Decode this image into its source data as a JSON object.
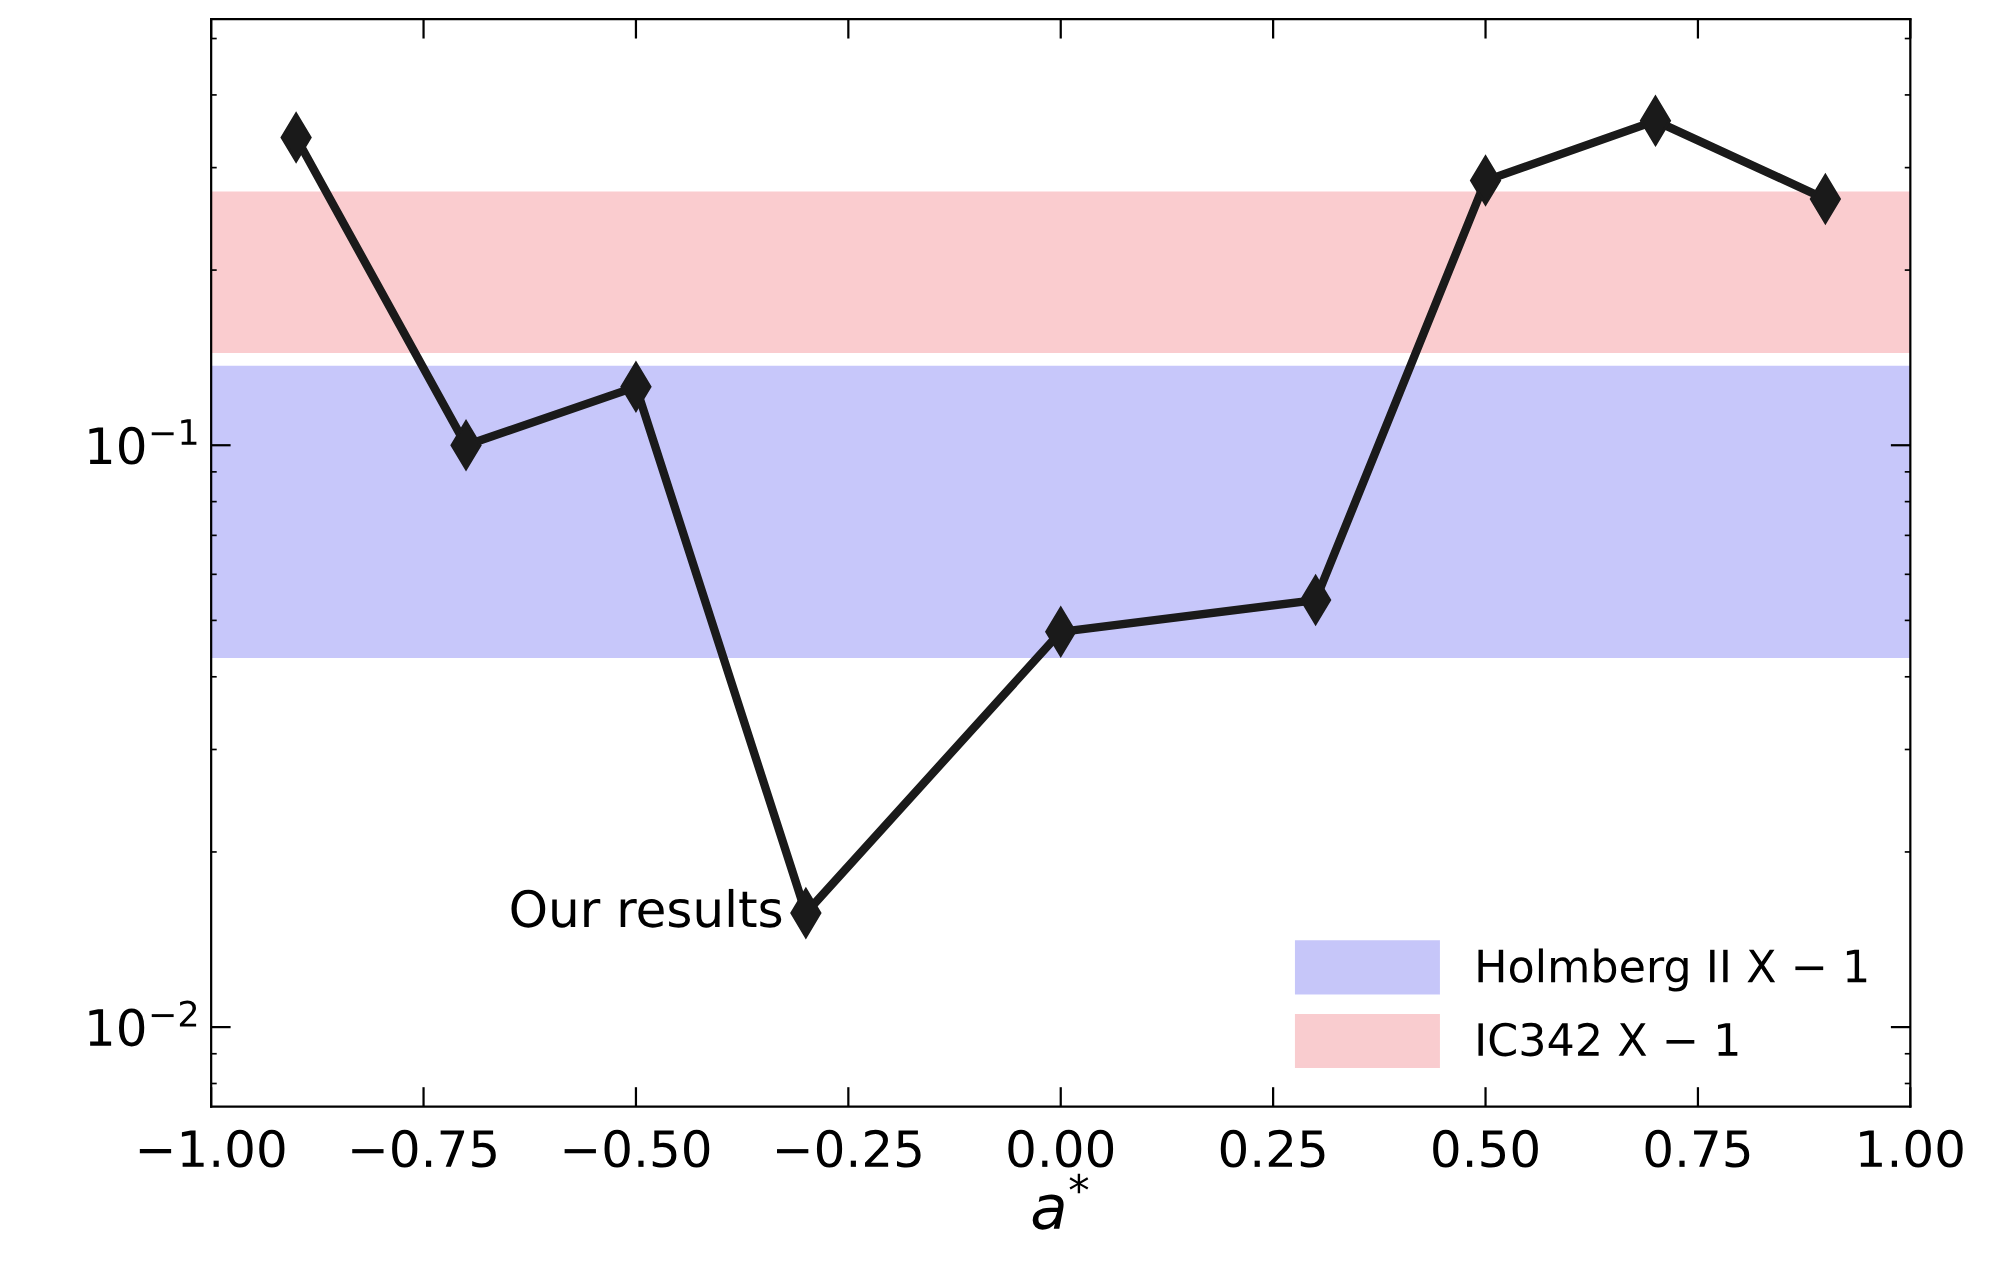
{
  "chart_data": {
    "type": "line",
    "xlabel": "a$^{*}$",
    "x": [
      -0.9,
      -0.7,
      -0.5,
      -0.3,
      0.0,
      0.3,
      0.5,
      0.7,
      0.9
    ],
    "series": [
      {
        "color": "#1a1a1a",
        "values": [
          0.338,
          0.1,
          0.126,
          0.0157,
          0.0478,
          0.0542,
          0.285,
          0.361,
          0.265
        ]
      }
    ],
    "marker": "diamond",
    "line_style": "solid",
    "log": "y",
    "xlim": [
      -1.0,
      1.0
    ],
    "xticks": [
      {
        "value": -1.0,
        "label": "−1.00"
      },
      {
        "value": -0.75,
        "label": "−0.75"
      },
      {
        "value": -0.5,
        "label": "−0.50"
      },
      {
        "value": -0.25,
        "label": "−0.25"
      },
      {
        "value": 0.0,
        "label": "0.00"
      },
      {
        "value": 0.25,
        "label": "0.25"
      },
      {
        "value": 0.5,
        "label": "0.50"
      },
      {
        "value": 0.75,
        "label": "0.75"
      },
      {
        "value": 1.0,
        "label": "1.00"
      }
    ],
    "ylim": [
      0.0073,
      0.54
    ],
    "yticks": [
      {
        "value": 0.01,
        "label": "10$^{−2}$"
      },
      {
        "value": 0.1,
        "label": "10$^{−1}$"
      }
    ],
    "bands": [
      {
        "axis": "y",
        "from": 0.0431,
        "to": 0.137,
        "label": "Holmberg II X − 1",
        "color": "#9999f5"
      },
      {
        "axis": "y",
        "from": 0.144,
        "to": 0.273,
        "label": "IC342 X − 1",
        "color": "#f5a3a8"
      }
    ],
    "annotations": [
      {
        "text": "Our results",
        "x": -0.3,
        "y": 0.0157
      }
    ],
    "legend": "bottom right",
    "grid": false
  }
}
